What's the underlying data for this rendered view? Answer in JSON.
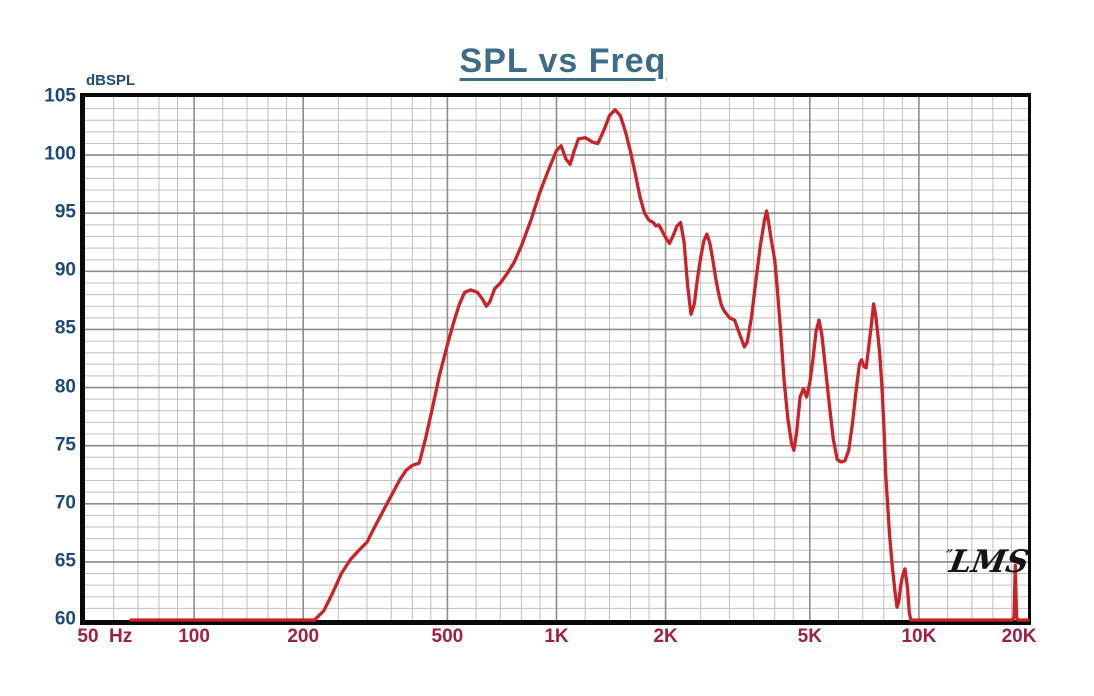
{
  "title": "SPL vs Freq",
  "y_unit": "dBSPL",
  "x_unit": "Hz",
  "watermark": "LMS",
  "watermark_mark": "”",
  "colors": {
    "curve": "#cc2127",
    "title": "#3e6b88",
    "y_label": "#1d4a77",
    "x_label": "#9e2044",
    "grid_minor": "#c0c0c0",
    "grid_major": "#8c8c8c",
    "frame": "#0a0a0a",
    "watermark": "#141414",
    "background": "#ffffff"
  },
  "chart_data": {
    "type": "line",
    "title": "SPL vs Freq",
    "xlabel": "Hz",
    "ylabel": "dBSPL",
    "x_scale": "log",
    "grid": "on",
    "legend": "none",
    "xlim": [
      50,
      20000
    ],
    "ylim": [
      60,
      105
    ],
    "y_major_step": 5,
    "y_minor_step": 1,
    "y_tick_labels": [
      105,
      100,
      95,
      90,
      85,
      80,
      75,
      70,
      65,
      60
    ],
    "x_major_ticks": [
      100,
      200,
      500,
      1000,
      2000,
      5000,
      10000
    ],
    "x_minor_ticks": [
      60,
      70,
      80,
      90,
      120,
      140,
      160,
      180,
      250,
      300,
      350,
      400,
      450,
      600,
      700,
      800,
      900,
      1200,
      1400,
      1600,
      1800,
      2500,
      3000,
      3500,
      4000,
      4500,
      6000,
      7000,
      8000,
      9000,
      12000,
      14000,
      16000,
      18000
    ],
    "x_tick_labels": [
      {
        "f": 50,
        "label": "50",
        "dx": 3
      },
      {
        "f": 100,
        "label": "100",
        "dx": 0
      },
      {
        "f": 200,
        "label": "200",
        "dx": 0
      },
      {
        "f": 500,
        "label": "500",
        "dx": 0
      },
      {
        "f": 1000,
        "label": "1K",
        "dx": 0
      },
      {
        "f": 2000,
        "label": "2K",
        "dx": 0
      },
      {
        "f": 5000,
        "label": "5K",
        "dx": 0
      },
      {
        "f": 10000,
        "label": "10K",
        "dx": 0
      },
      {
        "f": 20000,
        "label": "20K",
        "dx": -9
      }
    ],
    "series": [
      {
        "name": "SPL",
        "color": "#cc2127",
        "points": [
          [
            67,
            60
          ],
          [
            215,
            60
          ],
          [
            228,
            60.8
          ],
          [
            240,
            62.2
          ],
          [
            255,
            64.0
          ],
          [
            270,
            65.2
          ],
          [
            285,
            66.0
          ],
          [
            300,
            66.7
          ],
          [
            315,
            68.0
          ],
          [
            330,
            69.2
          ],
          [
            350,
            70.7
          ],
          [
            370,
            72.1
          ],
          [
            385,
            72.9
          ],
          [
            400,
            73.3
          ],
          [
            418,
            73.5
          ],
          [
            435,
            75.6
          ],
          [
            455,
            78.3
          ],
          [
            475,
            81.0
          ],
          [
            500,
            83.7
          ],
          [
            520,
            85.6
          ],
          [
            540,
            87.2
          ],
          [
            558,
            88.2
          ],
          [
            580,
            88.4
          ],
          [
            605,
            88.2
          ],
          [
            625,
            87.6
          ],
          [
            640,
            87.0
          ],
          [
            655,
            87.4
          ],
          [
            675,
            88.5
          ],
          [
            700,
            89.0
          ],
          [
            730,
            89.8
          ],
          [
            765,
            90.8
          ],
          [
            800,
            92.2
          ],
          [
            850,
            94.4
          ],
          [
            900,
            96.8
          ],
          [
            950,
            98.7
          ],
          [
            1000,
            100.4
          ],
          [
            1030,
            100.8
          ],
          [
            1060,
            99.7
          ],
          [
            1090,
            99.2
          ],
          [
            1120,
            100.4
          ],
          [
            1150,
            101.4
          ],
          [
            1200,
            101.5
          ],
          [
            1260,
            101.1
          ],
          [
            1300,
            101.0
          ],
          [
            1350,
            102.1
          ],
          [
            1400,
            103.4
          ],
          [
            1450,
            103.9
          ],
          [
            1500,
            103.4
          ],
          [
            1550,
            102.0
          ],
          [
            1600,
            100.3
          ],
          [
            1650,
            98.4
          ],
          [
            1700,
            96.4
          ],
          [
            1750,
            95.0
          ],
          [
            1800,
            94.4
          ],
          [
            1850,
            94.2
          ],
          [
            1880,
            93.9
          ],
          [
            1915,
            94.0
          ],
          [
            1955,
            93.5
          ],
          [
            2000,
            92.9
          ],
          [
            2050,
            92.4
          ],
          [
            2100,
            93.1
          ],
          [
            2150,
            93.9
          ],
          [
            2200,
            94.2
          ],
          [
            2250,
            92.5
          ],
          [
            2300,
            88.8
          ],
          [
            2350,
            86.3
          ],
          [
            2400,
            87.2
          ],
          [
            2450,
            89.4
          ],
          [
            2500,
            91.2
          ],
          [
            2550,
            92.6
          ],
          [
            2600,
            93.2
          ],
          [
            2650,
            92.4
          ],
          [
            2700,
            91.0
          ],
          [
            2750,
            89.4
          ],
          [
            2800,
            88.1
          ],
          [
            2850,
            87.1
          ],
          [
            2900,
            86.6
          ],
          [
            3000,
            86.0
          ],
          [
            3100,
            85.8
          ],
          [
            3200,
            84.6
          ],
          [
            3300,
            83.5
          ],
          [
            3360,
            83.9
          ],
          [
            3450,
            86.0
          ],
          [
            3550,
            89.2
          ],
          [
            3650,
            92.2
          ],
          [
            3750,
            94.4
          ],
          [
            3800,
            95.2
          ],
          [
            3850,
            94.2
          ],
          [
            3900,
            93.0
          ],
          [
            3950,
            92.0
          ],
          [
            4000,
            91.0
          ],
          [
            4060,
            88.8
          ],
          [
            4150,
            85.0
          ],
          [
            4250,
            80.5
          ],
          [
            4350,
            77.3
          ],
          [
            4450,
            75.2
          ],
          [
            4520,
            74.6
          ],
          [
            4600,
            76.2
          ],
          [
            4700,
            79.2
          ],
          [
            4800,
            79.9
          ],
          [
            4900,
            79.2
          ],
          [
            5000,
            80.4
          ],
          [
            5100,
            82.4
          ],
          [
            5200,
            84.8
          ],
          [
            5300,
            85.8
          ],
          [
            5400,
            84.5
          ],
          [
            5500,
            82.2
          ],
          [
            5650,
            78.8
          ],
          [
            5800,
            75.6
          ],
          [
            5950,
            73.8
          ],
          [
            6100,
            73.6
          ],
          [
            6250,
            73.7
          ],
          [
            6400,
            74.6
          ],
          [
            6550,
            76.8
          ],
          [
            6700,
            79.6
          ],
          [
            6850,
            82.0
          ],
          [
            6950,
            82.4
          ],
          [
            7050,
            81.8
          ],
          [
            7150,
            81.7
          ],
          [
            7250,
            83.2
          ],
          [
            7400,
            85.5
          ],
          [
            7500,
            87.2
          ],
          [
            7600,
            86.2
          ],
          [
            7700,
            84.6
          ],
          [
            7800,
            82.8
          ],
          [
            7900,
            80.3
          ],
          [
            8000,
            76.8
          ],
          [
            8100,
            72.5
          ],
          [
            8200,
            69.8
          ],
          [
            8300,
            67.3
          ],
          [
            8450,
            64.5
          ],
          [
            8600,
            62.3
          ],
          [
            8700,
            61.1
          ],
          [
            8800,
            61.6
          ],
          [
            8900,
            62.9
          ],
          [
            9000,
            63.7
          ],
          [
            9150,
            64.4
          ],
          [
            9300,
            62.8
          ],
          [
            9400,
            60.7
          ],
          [
            9500,
            60
          ],
          [
            18100,
            60
          ],
          [
            18300,
            60.2
          ],
          [
            18450,
            64.7
          ],
          [
            18600,
            60.2
          ],
          [
            18800,
            60
          ],
          [
            20000,
            60
          ]
        ]
      }
    ]
  }
}
